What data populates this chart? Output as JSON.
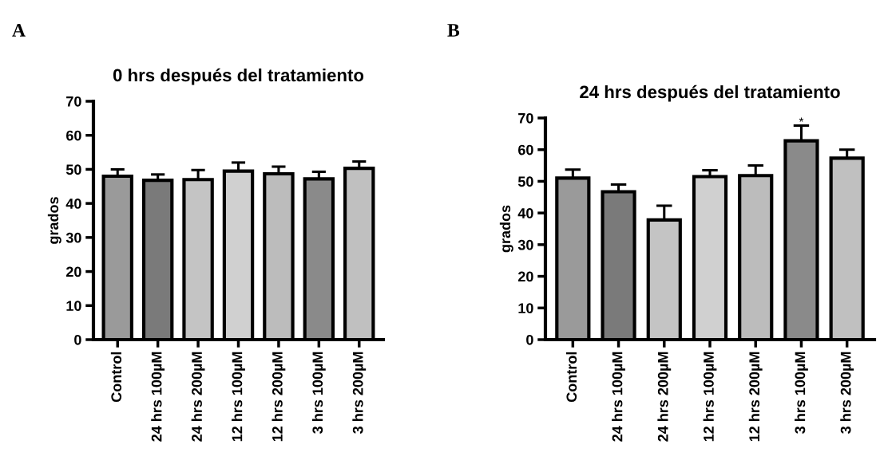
{
  "chart_data": [
    {
      "type": "bar",
      "title": "0 hrs después del tratamiento",
      "ylabel": "grados",
      "categories": [
        "Control",
        "24 hrs 100µM",
        "24 hrs 200µM",
        "12 hrs 100µM",
        "12 hrs 200µM",
        "3 hrs 100µM",
        "3 hrs 200µM"
      ],
      "values": [
        48,
        46.8,
        47,
        49.5,
        48.7,
        47.2,
        50.3
      ],
      "errors": [
        [
          48,
          50
        ],
        [
          46.8,
          48.5
        ],
        [
          47,
          49.8
        ],
        [
          49.5,
          52
        ],
        [
          48.7,
          50.8
        ],
        [
          47.2,
          49.3
        ],
        [
          50.3,
          52.3
        ]
      ],
      "colors": [
        "#9a9a9a",
        "#7a7a7a",
        "#c4c4c4",
        "#d0d0d0",
        "#bcbcbc",
        "#8a8a8a",
        "#c0c0c0"
      ],
      "ylim": [
        0,
        70
      ],
      "yticks": [
        0,
        10,
        20,
        30,
        40,
        50,
        60,
        70
      ],
      "grid": false,
      "legend": false,
      "annotations": [
        "A"
      ]
    },
    {
      "type": "bar",
      "title": "24 hrs después del tratamiento",
      "ylabel": "grados",
      "categories": [
        "Control",
        "24 hrs 100µM",
        "24 hrs 200µM",
        "12 hrs 100µM",
        "12 hrs 200µM",
        "3 hrs 100µM",
        "3 hrs 200µM"
      ],
      "values": [
        51,
        46.7,
        37.8,
        51.5,
        51.8,
        62.8,
        57.3
      ],
      "errors": [
        [
          51,
          53.7
        ],
        [
          46.7,
          49
        ],
        [
          37.8,
          42.3
        ],
        [
          51.5,
          53.5
        ],
        [
          51.8,
          55
        ],
        [
          62.8,
          67.6
        ],
        [
          57.3,
          60
        ]
      ],
      "colors": [
        "#9a9a9a",
        "#7a7a7a",
        "#c4c4c4",
        "#d0d0d0",
        "#bcbcbc",
        "#8a8a8a",
        "#c0c0c0"
      ],
      "ylim": [
        0,
        70
      ],
      "yticks": [
        0,
        10,
        20,
        30,
        40,
        50,
        60,
        70
      ],
      "grid": false,
      "legend": false,
      "annotations": [
        "B",
        {
          "text": "*",
          "x": "3 hrs 100µM",
          "y": 68.5
        }
      ]
    }
  ]
}
